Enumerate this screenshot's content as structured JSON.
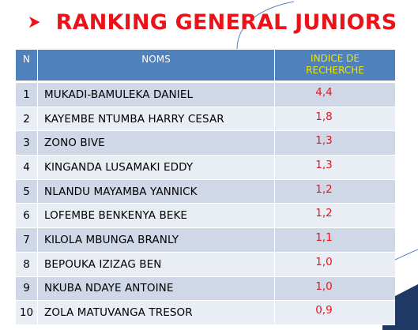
{
  "title": {
    "arrow_glyph": "➤",
    "text": "RANKING GENERAL JUNIORS"
  },
  "table": {
    "headers": {
      "n": "N",
      "noms": "NOMS",
      "indice_line1": "INDICE DE",
      "indice_line2": "RECHERCHE"
    },
    "rows": [
      {
        "n": "1",
        "name": "MUKADI-BAMULEKA DANIEL",
        "indice": "4,4"
      },
      {
        "n": "2",
        "name": "KAYEMBE NTUMBA HARRY CESAR",
        "indice": "1,8"
      },
      {
        "n": "3",
        "name": "ZONO BIVE",
        "indice": "1,3"
      },
      {
        "n": "4",
        "name": "KINGANDA LUSAMAKI EDDY",
        "indice": "1,3"
      },
      {
        "n": "5",
        "name": "NLANDU MAYAMBA YANNICK",
        "indice": "1,2"
      },
      {
        "n": "6",
        "name": "LOFEMBE BENKENYA BEKE",
        "indice": "1,2"
      },
      {
        "n": "7",
        "name": "KILOLA MBUNGA BRANLY",
        "indice": "1,1"
      },
      {
        "n": "8",
        "name": "BEPOUKA IZIZAG BEN",
        "indice": "1,0"
      },
      {
        "n": "9",
        "name": "NKUBA NDAYE ANTOINE",
        "indice": "1,0"
      },
      {
        "n": "10",
        "name": "ZOLA MATUVANGA TRESOR",
        "indice": "0,9"
      }
    ]
  },
  "colors": {
    "title_red": "#e8141a",
    "header_blue": "#4f81bd",
    "header_yellow": "#f2e600",
    "row_dark": "#d0d8e8",
    "row_light": "#e9edf4",
    "accent_navy": "#1f3864"
  }
}
